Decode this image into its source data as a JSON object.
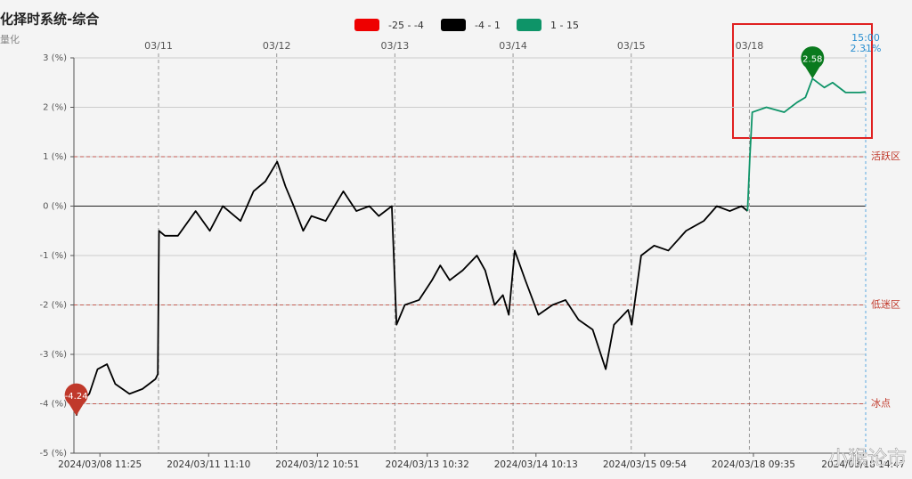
{
  "chart_data": {
    "type": "line",
    "title": "化择时系统-综合",
    "subtitle": "量化",
    "legend": [
      {
        "name": "-25 - -4",
        "color": "#ee0000",
        "from": -25,
        "to": -4
      },
      {
        "name": "-4 - 1",
        "color": "#000000",
        "from": -4,
        "to": 1
      },
      {
        "name": "1 - 15",
        "color": "#0e9468",
        "from": 1,
        "to": 15
      }
    ],
    "x": [
      0.02,
      0.05,
      0.13,
      0.2,
      0.28,
      0.35,
      0.47,
      0.58,
      0.69,
      0.71,
      0.72,
      0.77,
      0.88,
      1.03,
      1.15,
      1.26,
      1.41,
      1.52,
      1.62,
      1.72,
      1.79,
      1.86,
      1.94,
      2.01,
      2.13,
      2.28,
      2.39,
      2.5,
      2.58,
      2.69,
      2.73,
      2.8,
      2.92,
      3.03,
      3.1,
      3.18,
      3.29,
      3.41,
      3.48,
      3.56,
      3.63,
      3.68,
      3.73,
      3.82,
      3.93,
      4.05,
      4.16,
      4.27,
      4.39,
      4.5,
      4.57,
      4.69,
      4.72,
      4.8,
      4.91,
      5.03,
      5.18,
      5.33,
      5.44,
      5.55,
      5.65,
      5.7,
      5.72,
      5.74,
      5.86,
      6.01,
      6.12,
      6.19,
      6.25,
      6.35,
      6.42,
      6.53,
      6.65,
      6.7
    ],
    "values": [
      -4.24,
      -4.0,
      -3.8,
      -3.3,
      -3.2,
      -3.6,
      -3.8,
      -3.7,
      -3.5,
      -3.4,
      -0.5,
      -0.6,
      -0.6,
      -0.1,
      -0.5,
      0,
      -0.3,
      0.3,
      0.5,
      0.9,
      0.4,
      0,
      -0.5,
      -0.2,
      -0.3,
      0.3,
      -0.1,
      0,
      -0.2,
      0,
      -2.4,
      -2.0,
      -1.9,
      -1.5,
      -1.2,
      -1.5,
      -1.3,
      -1.0,
      -1.3,
      -2.0,
      -1.8,
      -2.2,
      -0.9,
      -1.5,
      -2.2,
      -2.0,
      -1.9,
      -2.3,
      -2.5,
      -3.3,
      -2.4,
      -2.1,
      -2.4,
      -1.0,
      -0.8,
      -0.9,
      -0.5,
      -0.3,
      0,
      -0.1,
      0,
      -0.1,
      1.0,
      1.9,
      2.0,
      1.9,
      2.1,
      2.2,
      2.58,
      2.4,
      2.5,
      2.3,
      2.3,
      2.31
    ],
    "xlim": [
      0,
      6.7
    ],
    "ylim": [
      -5,
      3
    ],
    "yticks": [
      {
        "value": 3,
        "label": "3 (%)"
      },
      {
        "value": 2,
        "label": "2 (%)"
      },
      {
        "value": 1,
        "label": "1 (%)"
      },
      {
        "value": 0,
        "label": "0 (%)"
      },
      {
        "value": -1,
        "label": "-1 (%)"
      },
      {
        "value": -2,
        "label": "-2 (%)"
      },
      {
        "value": -3,
        "label": "-3 (%)"
      },
      {
        "value": -4,
        "label": "-4 (%)"
      },
      {
        "value": -5,
        "label": "-5 (%)"
      }
    ],
    "day_ticks": [
      {
        "value": 0.716,
        "label": "03/11"
      },
      {
        "value": 1.716,
        "label": "03/12"
      },
      {
        "value": 2.716,
        "label": "03/13"
      },
      {
        "value": 3.716,
        "label": "03/14"
      },
      {
        "value": 4.716,
        "label": "03/15"
      },
      {
        "value": 5.716,
        "label": "03/18"
      }
    ],
    "xticks": [
      {
        "value": 0.22,
        "label": "2024/03/08 11:25"
      },
      {
        "value": 1.14,
        "label": "2024/03/11 11:10"
      },
      {
        "value": 2.06,
        "label": "2024/03/12 10:51"
      },
      {
        "value": 2.99,
        "label": "2024/03/13 10:32"
      },
      {
        "value": 3.91,
        "label": "2024/03/14 10:13"
      },
      {
        "value": 4.83,
        "label": "2024/03/15 09:54"
      },
      {
        "value": 5.75,
        "label": "2024/03/18 09:35"
      },
      {
        "value": 6.68,
        "label": "2024/03/18 14:47"
      }
    ],
    "reference_lines": [
      {
        "value": 1,
        "label": "活跃区"
      },
      {
        "value": -2,
        "label": "低迷区"
      },
      {
        "value": -4,
        "label": "冰点"
      }
    ],
    "min_marker": {
      "x": 0.02,
      "value": -4.24,
      "color": "#c0392b"
    },
    "max_marker": {
      "x": 6.25,
      "value": 2.58,
      "color": "#0a7a1e"
    },
    "end_label": {
      "x": 6.7,
      "time": "15:00",
      "value": 2.31,
      "value_label": "2.31%"
    },
    "watermark": "小猴论市",
    "grid": true
  }
}
